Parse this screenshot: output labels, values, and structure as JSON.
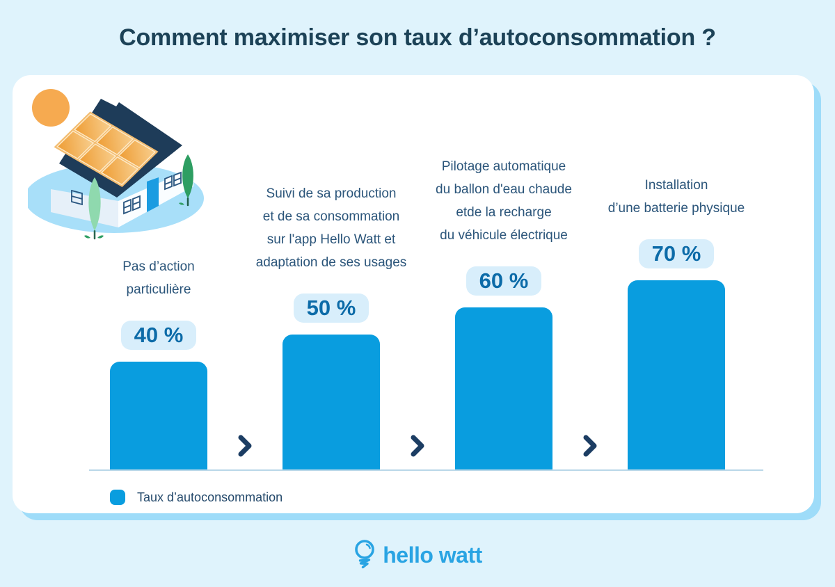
{
  "page": {
    "title": "Comment maximiser son taux d’autoconsommation ?"
  },
  "chart_data": {
    "type": "bar",
    "title": "Comment maximiser son taux d’autoconsommation ?",
    "categories": [
      "Pas d’action particulière",
      "Suivi de sa production et de sa consommation sur l'app Hello Watt et adaptation de ses usages",
      "Pilotage automatique du ballon d'eau chaude etde la recharge du véhicule électrique",
      "Installation d’une batterie physique"
    ],
    "values": [
      40,
      50,
      60,
      70
    ],
    "value_labels": [
      "40 %",
      "50 %",
      "60 %",
      "70 %"
    ],
    "unit": "%",
    "ylim": [
      0,
      100
    ],
    "grid": false,
    "legend": [
      "Taux d’autoconsommation"
    ],
    "legend_position": "bottom-left",
    "bar_color": "#099DDF"
  },
  "columns": [
    {
      "value": 40,
      "value_label": "40 %",
      "label_lines": [
        "Pas d’action",
        "particulière"
      ]
    },
    {
      "value": 50,
      "value_label": "50 %",
      "label_lines": [
        "Suivi de sa production",
        "et de sa consommation",
        "sur l'app Hello Watt et",
        "adaptation de ses usages"
      ]
    },
    {
      "value": 60,
      "value_label": "60 %",
      "label_lines": [
        "Pilotage automatique",
        "du ballon d'eau chaude",
        "etde la recharge",
        "du véhicule électrique"
      ]
    },
    {
      "value": 70,
      "value_label": "70 %",
      "label_lines": [
        "Installation",
        "d’une batterie physique"
      ]
    }
  ],
  "legend": {
    "label": "Taux d’autoconsommation",
    "swatch_color": "#099DDF"
  },
  "footer": {
    "brand": "hello watt"
  },
  "icons": {
    "chevron": "chevron-right",
    "brand_icon": "lightbulb",
    "illustration": "house-with-solar-panels-and-sun"
  },
  "colors": {
    "background": "#DFF3FC",
    "card": "#FFFFFF",
    "card_shadow": "#9EDCF9",
    "title_text": "#1C4257",
    "label_text": "#2B557A",
    "value_text": "#0C6BA8",
    "value_badge_bg": "#D8EEFB",
    "bar": "#099DDF",
    "chevron": "#1C3D63",
    "axis_line": "#B9D7E8",
    "brand_blue": "#29A4E3",
    "sun_orange": "#F6AA50"
  }
}
